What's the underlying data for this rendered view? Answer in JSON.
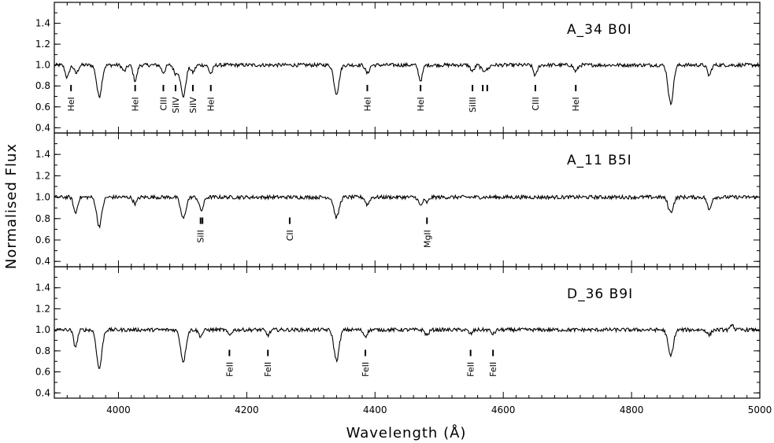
{
  "chart_data": {
    "type": "line",
    "xlabel": "Wavelength (Å)",
    "ylabel": "Normalised Flux",
    "xlim": [
      3900,
      5000
    ],
    "ylim": [
      0.35,
      1.6
    ],
    "x_ticks": [
      4000,
      4200,
      4400,
      4600,
      4800,
      5000
    ],
    "y_ticks": [
      0.4,
      0.6,
      0.8,
      1.0,
      1.2,
      1.4
    ],
    "grid": false,
    "panels": [
      {
        "label": "A_34  B0I",
        "continuum": 1.0,
        "features": [
          {
            "wl": 3920,
            "depth": 0.12,
            "width": 3
          },
          {
            "wl": 3934,
            "depth": 0.08,
            "width": 3
          },
          {
            "wl": 3970,
            "depth": 0.3,
            "width": 4
          },
          {
            "wl": 4009,
            "depth": 0.06,
            "width": 3
          },
          {
            "wl": 4026,
            "depth": 0.15,
            "width": 3
          },
          {
            "wl": 4070,
            "depth": 0.07,
            "width": 3
          },
          {
            "wl": 4089,
            "depth": 0.08,
            "width": 3
          },
          {
            "wl": 4101,
            "depth": 0.3,
            "width": 4
          },
          {
            "wl": 4116,
            "depth": 0.07,
            "width": 3
          },
          {
            "wl": 4144,
            "depth": 0.08,
            "width": 3
          },
          {
            "wl": 4340,
            "depth": 0.27,
            "width": 4
          },
          {
            "wl": 4388,
            "depth": 0.08,
            "width": 3
          },
          {
            "wl": 4471,
            "depth": 0.15,
            "width": 3
          },
          {
            "wl": 4552,
            "depth": 0.06,
            "width": 3
          },
          {
            "wl": 4568,
            "depth": 0.05,
            "width": 3
          },
          {
            "wl": 4575,
            "depth": 0.04,
            "width": 3
          },
          {
            "wl": 4650,
            "depth": 0.1,
            "width": 3
          },
          {
            "wl": 4713,
            "depth": 0.06,
            "width": 3
          },
          {
            "wl": 4861,
            "depth": 0.37,
            "width": 4
          },
          {
            "wl": 4921,
            "depth": 0.1,
            "width": 3
          }
        ],
        "lines": [
          {
            "label": "HeI",
            "wl": 3926
          },
          {
            "label": "HeI",
            "wl": 4026
          },
          {
            "label": "CIII",
            "wl": 4070
          },
          {
            "label": "SiIV",
            "wl": 4089
          },
          {
            "label": "SiIV",
            "wl": 4116
          },
          {
            "label": "HeI",
            "wl": 4144
          },
          {
            "label": "HeI",
            "wl": 4388
          },
          {
            "label": "HeI",
            "wl": 4471
          },
          {
            "label": "SiIII",
            "wl": 4552
          },
          {
            "label": "",
            "wl": 4568
          },
          {
            "label": "",
            "wl": 4575
          },
          {
            "label": "CIII",
            "wl": 4650
          },
          {
            "label": "HeI",
            "wl": 4713
          }
        ]
      },
      {
        "label": "A_11  B5I",
        "continuum": 1.0,
        "features": [
          {
            "wl": 3933,
            "depth": 0.15,
            "width": 3
          },
          {
            "wl": 3970,
            "depth": 0.27,
            "width": 4
          },
          {
            "wl": 4026,
            "depth": 0.06,
            "width": 3
          },
          {
            "wl": 4101,
            "depth": 0.2,
            "width": 4
          },
          {
            "wl": 4128,
            "depth": 0.08,
            "width": 3
          },
          {
            "wl": 4131,
            "depth": 0.06,
            "width": 3
          },
          {
            "wl": 4340,
            "depth": 0.19,
            "width": 4
          },
          {
            "wl": 4388,
            "depth": 0.07,
            "width": 3
          },
          {
            "wl": 4471,
            "depth": 0.08,
            "width": 3
          },
          {
            "wl": 4481,
            "depth": 0.05,
            "width": 3
          },
          {
            "wl": 4861,
            "depth": 0.14,
            "width": 4
          },
          {
            "wl": 4921,
            "depth": 0.12,
            "width": 3
          }
        ],
        "lines": [
          {
            "label": "SiII",
            "wl": 4128
          },
          {
            "label": "",
            "wl": 4131
          },
          {
            "label": "CII",
            "wl": 4267
          },
          {
            "label": "MgII",
            "wl": 4481
          }
        ]
      },
      {
        "label": "D_36  B9I",
        "continuum": 1.0,
        "features": [
          {
            "wl": 3933,
            "depth": 0.16,
            "width": 3
          },
          {
            "wl": 3970,
            "depth": 0.37,
            "width": 4
          },
          {
            "wl": 4101,
            "depth": 0.3,
            "width": 4
          },
          {
            "wl": 4128,
            "depth": 0.06,
            "width": 3
          },
          {
            "wl": 4173,
            "depth": 0.05,
            "width": 3
          },
          {
            "wl": 4233,
            "depth": 0.05,
            "width": 3
          },
          {
            "wl": 4340,
            "depth": 0.29,
            "width": 4
          },
          {
            "wl": 4385,
            "depth": 0.06,
            "width": 3
          },
          {
            "wl": 4481,
            "depth": 0.05,
            "width": 3
          },
          {
            "wl": 4549,
            "depth": 0.04,
            "width": 3
          },
          {
            "wl": 4584,
            "depth": 0.04,
            "width": 3
          },
          {
            "wl": 4861,
            "depth": 0.25,
            "width": 4
          },
          {
            "wl": 4921,
            "depth": 0.05,
            "width": 3
          }
        ],
        "emission": [
          {
            "wl": 4957,
            "height": 0.06,
            "width": 2
          }
        ],
        "lines": [
          {
            "label": "FeII",
            "wl": 4173
          },
          {
            "label": "FeII",
            "wl": 4233
          },
          {
            "label": "FeII",
            "wl": 4385
          },
          {
            "label": "FeII",
            "wl": 4549
          },
          {
            "label": "FeII",
            "wl": 4584
          }
        ]
      }
    ]
  }
}
